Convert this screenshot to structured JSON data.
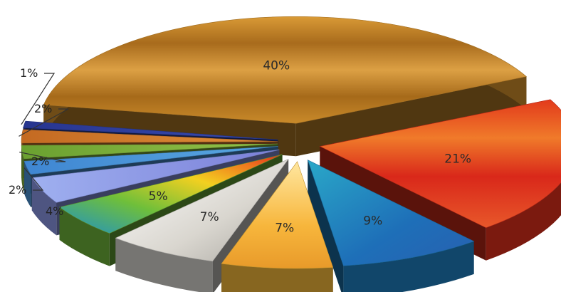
{
  "chart_data": {
    "type": "pie",
    "style": "3d-exploded",
    "title": "",
    "legend": "none",
    "slices": [
      {
        "label": "40%",
        "value": 40,
        "color": "#c98a2a"
      },
      {
        "label": "21%",
        "value": 21,
        "color": "#e0301c"
      },
      {
        "label": "9%",
        "value": 9,
        "color": "#1e7fc0"
      },
      {
        "label": "7%",
        "value": 7,
        "color": "#f5b93a"
      },
      {
        "label": "7%",
        "value": 7,
        "color": "#d7d5cf"
      },
      {
        "label": "5%",
        "value": 5,
        "color": "#6fb43a"
      },
      {
        "label": "4%",
        "value": 4,
        "color": "#8e9bea"
      },
      {
        "label": "2%",
        "value": 2,
        "color": "#4a93d6"
      },
      {
        "label": "2%",
        "value": 2,
        "color": "#7fb03c"
      },
      {
        "label": "2%",
        "value": 2,
        "color": "#d07a2c"
      },
      {
        "label": "1%",
        "value": 1,
        "color": "#2d3f9c"
      }
    ]
  }
}
